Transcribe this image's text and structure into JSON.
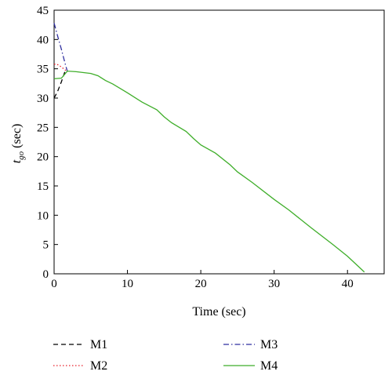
{
  "chart_data": {
    "type": "line",
    "title": "",
    "xlabel": "Time (sec)",
    "ylabel": {
      "base": "t",
      "subscript": "go",
      "suffix": " (sec)"
    },
    "xlim": [
      0,
      45
    ],
    "ylim": [
      0,
      45
    ],
    "xticks": [
      0,
      10,
      20,
      30,
      40
    ],
    "yticks": [
      0,
      5,
      10,
      15,
      20,
      25,
      30,
      35,
      40,
      45
    ],
    "grid": false,
    "legend_position": "below",
    "series": [
      {
        "name": "M1",
        "color": "#000000",
        "dash": "dashed",
        "x": [
          0,
          0.5,
          1.0,
          1.5,
          1.8
        ],
        "y": [
          30.0,
          31.2,
          32.8,
          34.6,
          34.6
        ]
      },
      {
        "name": "M2",
        "color": "#e8202a",
        "dash": "dotted",
        "x": [
          0,
          0.5,
          1.0,
          1.5,
          1.8
        ],
        "y": [
          35.8,
          35.7,
          35.3,
          34.8,
          34.6
        ]
      },
      {
        "name": "M3",
        "color": "#2f2f9f",
        "dash": "dashdot",
        "x": [
          0,
          0.5,
          1.0,
          1.5,
          1.8
        ],
        "y": [
          42.8,
          40.5,
          38.3,
          35.9,
          34.6
        ]
      },
      {
        "name": "M4",
        "color": "#3fae2a",
        "dash": "solid",
        "x": [
          0,
          1.0,
          1.8,
          3.0,
          5.0,
          6.0,
          7.0,
          8.0,
          10.0,
          12.0,
          14.0,
          15.0,
          16.0,
          18.0,
          19.0,
          20.0,
          22.0,
          24.0,
          25.0,
          27.0,
          30.0,
          32.0,
          35.0,
          38.0,
          40.0,
          42.3
        ],
        "y": [
          33.3,
          33.4,
          34.6,
          34.5,
          34.2,
          33.8,
          33.0,
          32.4,
          30.9,
          29.3,
          28.0,
          26.8,
          25.8,
          24.3,
          23.1,
          22.0,
          20.6,
          18.6,
          17.4,
          15.6,
          12.7,
          10.9,
          7.9,
          5.0,
          3.0,
          0.3
        ]
      }
    ]
  }
}
